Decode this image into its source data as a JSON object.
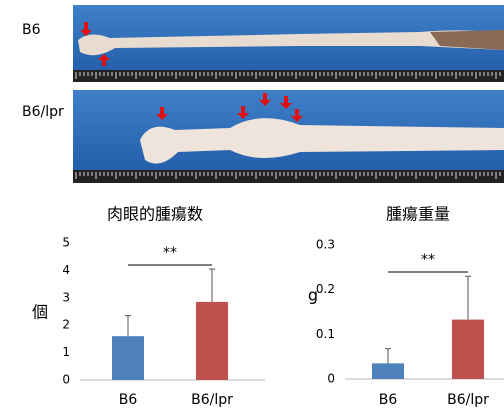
{
  "photos": [
    {
      "label": "B6"
    },
    {
      "label": "B6/lpr"
    }
  ],
  "chart_data": [
    {
      "type": "bar",
      "title": "肉眼的腫瘍数",
      "y_label": "個",
      "categories": [
        "B6",
        "B6/lpr"
      ],
      "values": [
        1.6,
        2.85
      ],
      "errors": [
        0.75,
        1.2
      ],
      "colors": [
        "#4f81bd",
        "#c0504d"
      ],
      "ylim": [
        0,
        5
      ],
      "yticks": [
        0,
        1,
        2,
        3,
        4,
        5
      ],
      "significance": "**"
    },
    {
      "type": "bar",
      "title": "腫瘍重量",
      "y_label": "g",
      "categories": [
        "B6",
        "B6/lpr"
      ],
      "values": [
        0.035,
        0.133
      ],
      "errors": [
        0.033,
        0.097
      ],
      "colors": [
        "#4f81bd",
        "#c0504d"
      ],
      "ylim": [
        0,
        0.3
      ],
      "yticks": [
        0,
        0.1,
        0.2,
        0.3
      ],
      "significance": "**"
    }
  ]
}
